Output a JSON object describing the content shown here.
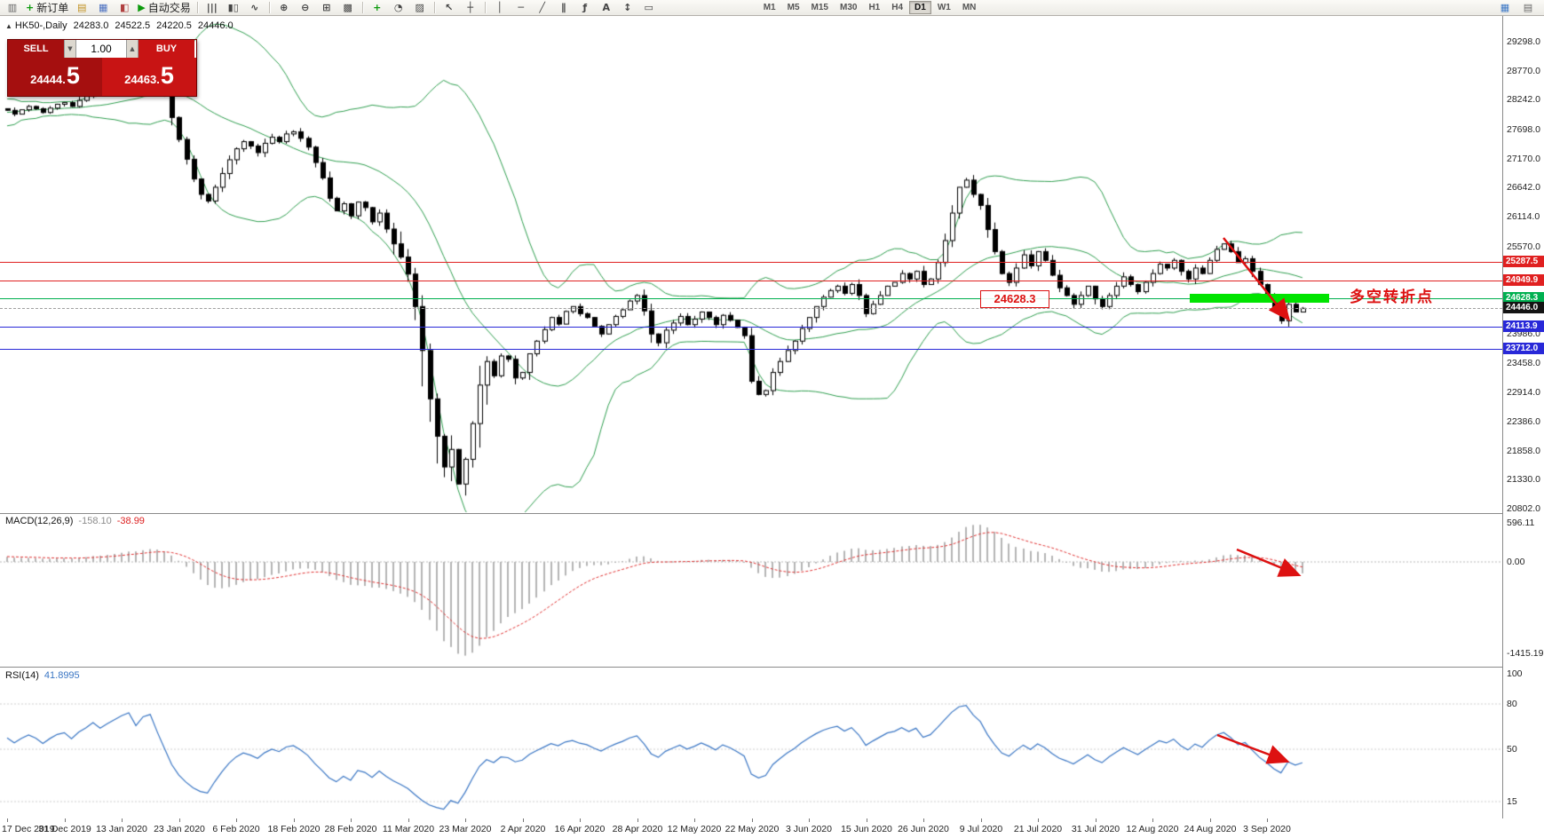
{
  "toolbar": {
    "left_items": [
      {
        "name": "chart-window-icon",
        "glyph": "▥",
        "color": "#666"
      },
      {
        "name": "new-order-button",
        "glyph": "+",
        "color": "#0c9a0c",
        "label": "新订单"
      },
      {
        "name": "expert-advisors-icon",
        "glyph": "▤",
        "color": "#c09020"
      },
      {
        "name": "data-window-icon",
        "glyph": "▦",
        "color": "#4a6fc0"
      },
      {
        "name": "strategy-icon",
        "glyph": "◧",
        "color": "#b04040"
      },
      {
        "name": "auto-trading-button",
        "glyph": "▶",
        "color": "#0c9a0c",
        "label": "自动交易"
      },
      {
        "type": "sep"
      },
      {
        "name": "bar-chart-icon",
        "glyph": "|||",
        "color": "#444"
      },
      {
        "name": "candlestick-chart-icon",
        "glyph": "▮▯",
        "color": "#444"
      },
      {
        "name": "line-chart-icon",
        "glyph": "∿",
        "color": "#444"
      },
      {
        "type": "sep"
      },
      {
        "name": "zoom-in-icon",
        "glyph": "⊕",
        "color": "#444"
      },
      {
        "name": "zoom-out-icon",
        "glyph": "⊖",
        "color": "#444"
      },
      {
        "name": "tile-windows-icon",
        "glyph": "⊞",
        "color": "#444"
      },
      {
        "name": "cascade-windows-icon",
        "glyph": "▩",
        "color": "#444"
      },
      {
        "type": "sep"
      },
      {
        "name": "indicators-add-button",
        "glyph": "+",
        "color": "#0c9a0c"
      },
      {
        "name": "periods-icon",
        "glyph": "◔",
        "color": "#444"
      },
      {
        "name": "templates-icon",
        "glyph": "▨",
        "color": "#444"
      },
      {
        "type": "sep"
      },
      {
        "name": "cursor-icon",
        "glyph": "↖",
        "color": "#444"
      },
      {
        "name": "crosshair-icon",
        "glyph": "┼",
        "color": "#444"
      },
      {
        "type": "sep"
      },
      {
        "name": "vertical-line-icon",
        "glyph": "│",
        "color": "#444"
      },
      {
        "name": "horizontal-line-icon",
        "glyph": "─",
        "color": "#444"
      },
      {
        "name": "trendline-icon",
        "glyph": "╱",
        "color": "#444"
      },
      {
        "name": "channel-icon",
        "glyph": "∥",
        "color": "#444"
      },
      {
        "name": "fibonacci-icon",
        "glyph": "ƒ",
        "color": "#444"
      },
      {
        "name": "text-tool-icon",
        "glyph": "A",
        "color": "#444"
      },
      {
        "name": "arrows-tool-icon",
        "glyph": "↕",
        "color": "#444"
      },
      {
        "name": "shapes-tool-icon",
        "glyph": "▭",
        "color": "#444"
      }
    ],
    "timeframes": {
      "items": [
        "M1",
        "M5",
        "M15",
        "M30",
        "H1",
        "H4",
        "D1",
        "W1",
        "MN"
      ],
      "active": "D1"
    },
    "right_items": [
      {
        "name": "new-chart-icon",
        "glyph": "▦",
        "color": "#3a76c4"
      },
      {
        "name": "print-icon",
        "glyph": "▤",
        "color": "#666"
      }
    ]
  },
  "chart_header": {
    "collapse_glyph": "▲",
    "symbol": "HK50-,Daily",
    "open": "24283.0",
    "high": "24522.5",
    "low": "24220.5",
    "close": "24446.0"
  },
  "trade_panel": {
    "sell_label": "SELL",
    "buy_label": "BUY",
    "volume": "1.00",
    "spinner_down": "▼",
    "spinner_up": "▲",
    "sell_price": "24444.",
    "sell_big": "5",
    "buy_price": "24463.",
    "buy_big": "5"
  },
  "price_axis": {
    "labels": [
      {
        "text": "29298.0",
        "value": 29298.0
      },
      {
        "text": "28770.0",
        "value": 28770.0
      },
      {
        "text": "28242.0",
        "value": 28242.0
      },
      {
        "text": "27698.0",
        "value": 27698.0
      },
      {
        "text": "27170.0",
        "value": 27170.0
      },
      {
        "text": "26642.0",
        "value": 26642.0
      },
      {
        "text": "26114.0",
        "value": 26114.0
      },
      {
        "text": "25570.0",
        "value": 25570.0
      },
      {
        "text": "23986.0",
        "value": 23986.0
      },
      {
        "text": "23458.0",
        "value": 23458.0
      },
      {
        "text": "22914.0",
        "value": 22914.0
      },
      {
        "text": "22386.0",
        "value": 22386.0
      },
      {
        "text": "21858.0",
        "value": 21858.0
      },
      {
        "text": "21330.0",
        "value": 21330.0
      },
      {
        "text": "20802.0",
        "value": 20802.0
      }
    ],
    "tags": [
      {
        "text": "25287.5",
        "value": 25287.5,
        "bg": "#e02020"
      },
      {
        "text": "24949.9",
        "value": 24949.9,
        "bg": "#e02020"
      },
      {
        "text": "24628.3",
        "value": 24628.3,
        "bg": "#00b050"
      },
      {
        "text": "24446.0",
        "value": 24446.0,
        "bg": "#141414"
      },
      {
        "text": "24113.9",
        "value": 24113.9,
        "bg": "#2828d8"
      },
      {
        "text": "23712.0",
        "value": 23712.0,
        "bg": "#2828d8"
      }
    ]
  },
  "levels": [
    {
      "value": 25287.5,
      "color": "#e02020",
      "style": "solid"
    },
    {
      "value": 24949.9,
      "color": "#e02020",
      "style": "solid"
    },
    {
      "value": 24628.3,
      "color": "#00b050",
      "style": "solid"
    },
    {
      "value": 24446.0,
      "color": "#a0a0a0",
      "style": "dashed"
    },
    {
      "value": 24113.9,
      "color": "#2828d8",
      "style": "solid"
    },
    {
      "value": 23712.0,
      "color": "#2828d8",
      "style": "solid"
    }
  ],
  "zone": {
    "value": 24628.3,
    "x_start": 1340,
    "x_end": 1497,
    "thickness": 10,
    "color": "#00e400"
  },
  "annotations": {
    "price_callout": "24628.3",
    "turning_point_label": "多空转折点",
    "arrow_color": "#dd1111"
  },
  "macd_panel": {
    "title": "MACD(12,26,9)",
    "main_value": "-158.10",
    "signal_value": "-38.99",
    "axis_labels": [
      "596.11",
      "0.00",
      "-1415.19"
    ]
  },
  "rsi_panel": {
    "title": "RSI(14)",
    "value": "41.8995",
    "axis_labels": [
      "100",
      "80",
      "50",
      "15"
    ]
  },
  "time_axis": {
    "labels": [
      "17 Dec 2019",
      "31 Dec 2019",
      "13 Jan 2020",
      "23 Jan 2020",
      "6 Feb 2020",
      "18 Feb 2020",
      "28 Feb 2020",
      "11 Mar 2020",
      "23 Mar 2020",
      "2 Apr 2020",
      "16 Apr 2020",
      "28 Apr 2020",
      "12 May 2020",
      "22 May 2020",
      "3 Jun 2020",
      "15 Jun 2020",
      "26 Jun 2020",
      "9 Jul 2020",
      "21 Jul 2020",
      "31 Jul 2020",
      "12 Aug 2020",
      "24 Aug 2020",
      "3 Sep 2020"
    ]
  },
  "chart_data": {
    "type": "candlestick",
    "symbol": "HK50",
    "timeframe": "Daily",
    "y_axis_range": [
      20802,
      29298
    ],
    "x_range": [
      "17 Dec 2019",
      "8 Sep 2020"
    ],
    "overlays": [
      {
        "type": "bollinger",
        "period": 20,
        "deviation": 2,
        "color": "#2f9e4f"
      }
    ],
    "indicators": [
      {
        "type": "MACD",
        "fast": 12,
        "slow": 26,
        "signal": 9,
        "last_main": -158.1,
        "last_signal": -38.99,
        "range": [
          -1415.19,
          596.11
        ]
      },
      {
        "type": "RSI",
        "period": 14,
        "last": 41.8995,
        "levels": [
          15,
          50,
          80
        ]
      }
    ],
    "pre_closes": [
      27750,
      27820,
      27680,
      27900,
      27960,
      27850,
      27980,
      28060,
      27950,
      28020,
      28120,
      28010,
      28080,
      28160,
      28100,
      28020,
      28100,
      28200,
      28120,
      28080
    ],
    "closes": [
      28050,
      27980,
      28060,
      28120,
      28080,
      28010,
      28090,
      28160,
      28190,
      28120,
      28230,
      28310,
      28420,
      28360,
      28450,
      28540,
      28640,
      28720,
      28580,
      28810,
      28880,
      28640,
      28340,
      27920,
      27520,
      27160,
      26800,
      26520,
      26400,
      26650,
      26900,
      27150,
      27350,
      27480,
      27400,
      27280,
      27450,
      27560,
      27480,
      27620,
      27660,
      27540,
      27380,
      27100,
      26820,
      26450,
      26220,
      26350,
      26130,
      26380,
      26280,
      26020,
      26180,
      25890,
      25620,
      25380,
      25070,
      24480,
      23680,
      22800,
      22120,
      21560,
      21880,
      21250,
      21700,
      22350,
      23050,
      23480,
      23220,
      23580,
      23520,
      23180,
      23280,
      23620,
      23850,
      24060,
      24280,
      24160,
      24390,
      24480,
      24350,
      24280,
      24120,
      23980,
      24150,
      24300,
      24420,
      24580,
      24680,
      24400,
      23980,
      23820,
      24050,
      24180,
      24300,
      24150,
      24250,
      24380,
      24280,
      24150,
      24320,
      24230,
      24100,
      23950,
      23120,
      22880,
      22950,
      23280,
      23480,
      23680,
      23850,
      24080,
      24280,
      24480,
      24650,
      24770,
      24850,
      24720,
      24880,
      24680,
      24350,
      24520,
      24680,
      24850,
      24920,
      25080,
      24980,
      25120,
      24880,
      24980,
      25280,
      25680,
      26180,
      26650,
      26780,
      26520,
      26320,
      25880,
      25480,
      25080,
      24920,
      25180,
      25420,
      25220,
      25480,
      25320,
      25050,
      24820,
      24680,
      24520,
      24680,
      24850,
      24620,
      24480,
      24680,
      24850,
      25020,
      24880,
      24750,
      24920,
      25080,
      25250,
      25180,
      25320,
      25120,
      24980,
      25180,
      25080,
      25320,
      25520,
      25620,
      25480,
      25280,
      25350,
      25120,
      24880,
      24680,
      24420,
      24220,
      24520,
      24380,
      24446
    ]
  }
}
